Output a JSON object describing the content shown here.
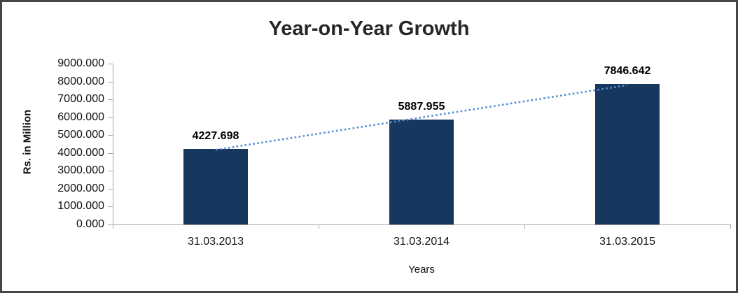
{
  "chart_data": {
    "type": "bar",
    "title": "Year-on-Year Growth",
    "categories": [
      "31.03.2013",
      "31.03.2014",
      "31.03.2015"
    ],
    "values": [
      4227.698,
      5887.955,
      7846.642
    ],
    "data_labels": [
      "4227.698",
      "5887.955",
      "7846.642"
    ],
    "xlabel": "Years",
    "ylabel": "Rs. in Million",
    "ylim": [
      0,
      9000
    ],
    "ytick_interval": 1000,
    "ytick_labels": [
      "0.000",
      "1000.000",
      "2000.000",
      "3000.000",
      "4000.000",
      "5000.000",
      "6000.000",
      "7000.000",
      "8000.000",
      "9000.000"
    ],
    "gridlines": false,
    "legend": "none",
    "bar_color": "#17375E",
    "trendline": {
      "type": "linear",
      "style": "dotted",
      "color": "#558ED5"
    },
    "axis_color": "#a6a6a6",
    "text_color": "#111111"
  }
}
